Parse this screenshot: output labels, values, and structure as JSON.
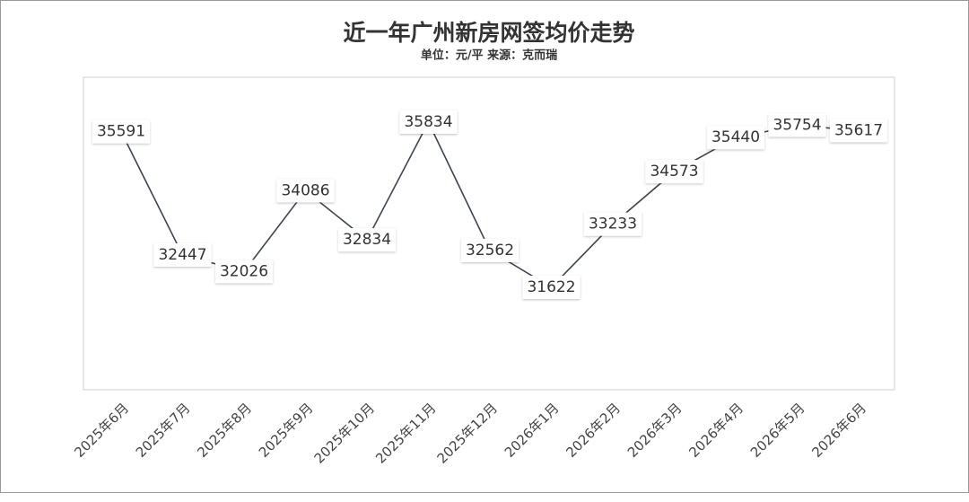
{
  "chart_data": {
    "type": "line",
    "title": "近一年广州新房网签均价走势",
    "subtitle": "单位：元/平  来源：克而瑞",
    "categories": [
      "2025年6月",
      "2025年7月",
      "2025年8月",
      "2025年9月",
      "2025年10月",
      "2025年11月",
      "2025年12月",
      "2026年1月",
      "2026年2月",
      "2026年3月",
      "2026年4月",
      "2026年5月",
      "2026年6月"
    ],
    "values": [
      35591,
      32447,
      32026,
      34086,
      32834,
      35834,
      32562,
      31622,
      33233,
      34573,
      35440,
      35754,
      35617
    ],
    "color": "#3d4452",
    "grid": false
  }
}
